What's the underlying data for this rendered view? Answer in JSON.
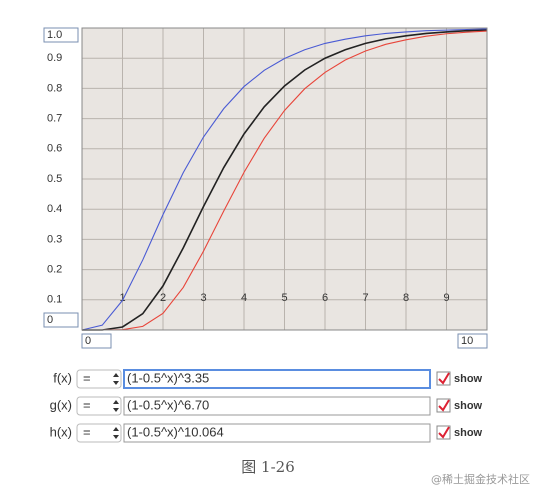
{
  "chart_data": {
    "type": "line",
    "x": [
      0,
      0.5,
      1,
      1.5,
      2,
      2.5,
      3,
      3.5,
      4,
      4.5,
      5,
      5.5,
      6,
      6.5,
      7,
      7.5,
      8,
      8.5,
      9,
      9.5,
      10
    ],
    "xlim": [
      0,
      10
    ],
    "xticks": [
      0,
      1,
      2,
      3,
      4,
      5,
      6,
      7,
      8,
      9,
      10
    ],
    "ylim": [
      0,
      1
    ],
    "yticks": [
      0,
      0.1,
      0.2,
      0.3,
      0.4,
      0.5,
      0.6,
      0.7,
      0.8,
      0.9,
      {
        "value": 1,
        "label": "1.0"
      }
    ],
    "grid": true,
    "series": [
      {
        "name": "f(x)",
        "operator": "=",
        "expression": "(1-0.5^x)^3.35",
        "show_label": "show",
        "color": "#4a5bd4",
        "values": [
          0,
          0.016,
          0.098,
          0.232,
          0.382,
          0.521,
          0.639,
          0.733,
          0.806,
          0.86,
          0.899,
          0.928,
          0.949,
          0.963,
          0.974,
          0.982,
          0.987,
          0.991,
          0.993,
          0.995,
          0.997
        ]
      },
      {
        "name": "g(x)",
        "operator": "=",
        "expression": "(1-0.5^x)^6.70",
        "show_label": "show",
        "color": "#222222",
        "values": [
          0,
          0.0,
          0.01,
          0.054,
          0.146,
          0.272,
          0.409,
          0.538,
          0.649,
          0.739,
          0.808,
          0.861,
          0.9,
          0.928,
          0.949,
          0.964,
          0.974,
          0.982,
          0.987,
          0.991,
          0.993
        ]
      },
      {
        "name": "h(x)",
        "operator": "=",
        "expression": "(1-0.5^x)^10.064",
        "show_label": "show",
        "color": "#e8453a",
        "values": [
          0,
          0.0,
          0.001,
          0.012,
          0.055,
          0.141,
          0.261,
          0.394,
          0.522,
          0.635,
          0.727,
          0.799,
          0.853,
          0.894,
          0.924,
          0.946,
          0.961,
          0.973,
          0.981,
          0.986,
          0.99
        ]
      }
    ]
  },
  "caption": "图 1-26",
  "watermark": "@稀土掘金技术社区"
}
